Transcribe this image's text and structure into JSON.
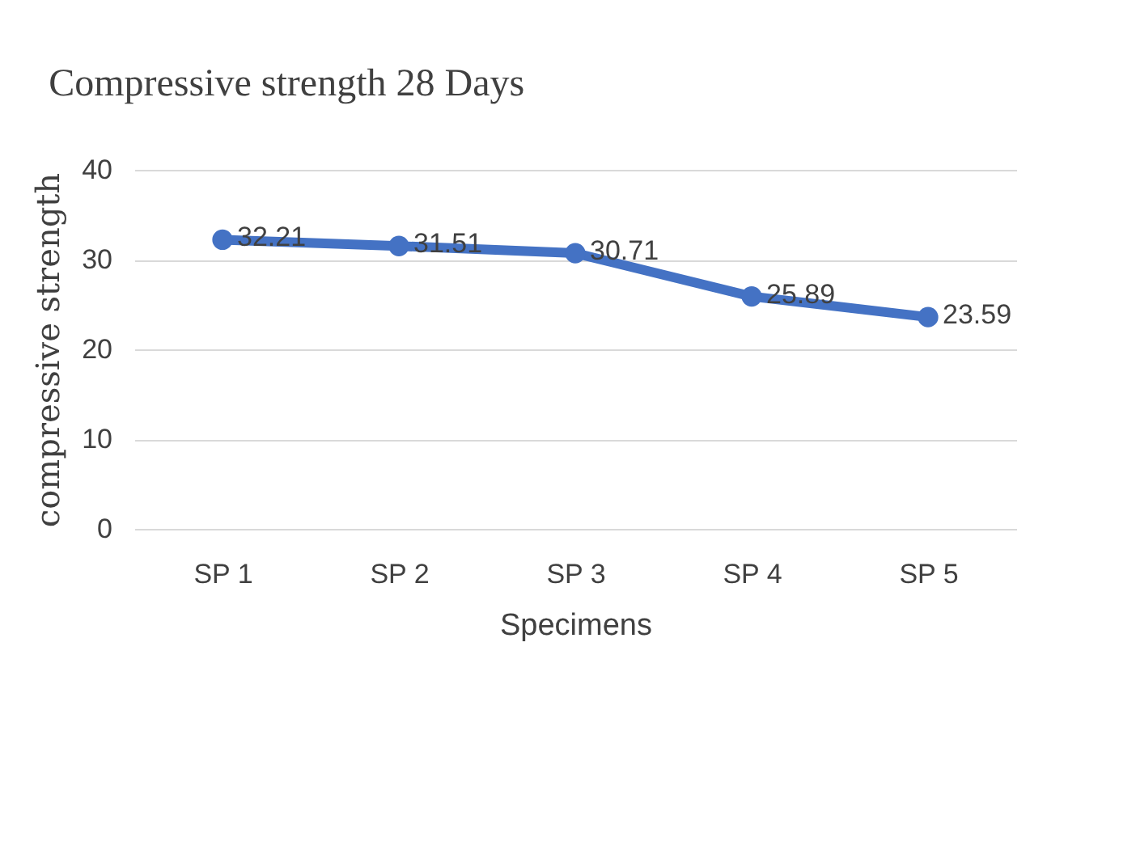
{
  "chart_data": {
    "type": "line",
    "title": "Compressive strength 28 Days",
    "xlabel": "Specimens",
    "ylabel": "compressive strength",
    "categories": [
      "SP 1",
      "SP 2",
      "SP 3",
      "SP 4",
      "SP 5"
    ],
    "series": [
      {
        "color": "#4472c4",
        "values": [
          32.21,
          31.51,
          30.71,
          25.89,
          23.59
        ]
      }
    ],
    "ylim": [
      0,
      40
    ],
    "yticks": [
      0,
      10,
      20,
      30,
      40
    ],
    "grid": "y",
    "legend": false,
    "marker": "circle",
    "line_style": "solid",
    "data_labels": true
  }
}
